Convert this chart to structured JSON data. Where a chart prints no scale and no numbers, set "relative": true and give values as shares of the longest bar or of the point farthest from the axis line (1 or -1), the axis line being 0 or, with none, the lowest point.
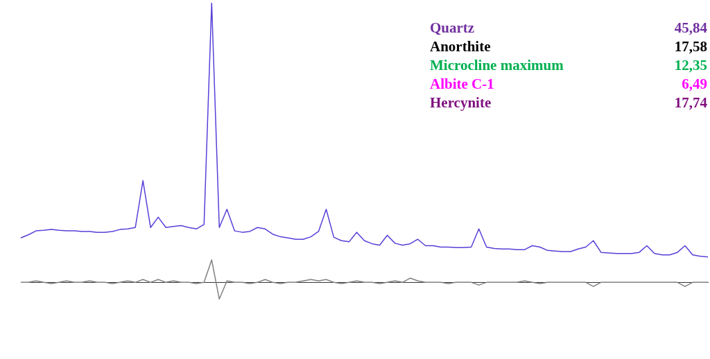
{
  "chart_data": {
    "type": "line",
    "relative": true,
    "categories": [
      null,
      null,
      null,
      null,
      null,
      null,
      null,
      null,
      null,
      null,
      null,
      null,
      null,
      null,
      null,
      null,
      null,
      null,
      null,
      null,
      null,
      null,
      null,
      null,
      null,
      null,
      null,
      null,
      null,
      null,
      null,
      null,
      null,
      null,
      null,
      null,
      null,
      null,
      null,
      null,
      null,
      null,
      null,
      null,
      null,
      null,
      null,
      null,
      null,
      null,
      null,
      null,
      null,
      null,
      null,
      null,
      null,
      null,
      null,
      null,
      null,
      null,
      null,
      null,
      null,
      null,
      null,
      null,
      null,
      null,
      null,
      null,
      null,
      null,
      null,
      null,
      null,
      null,
      null,
      null,
      null,
      null,
      null,
      null,
      null,
      null,
      null,
      null,
      null,
      null,
      null
    ],
    "series": [
      {
        "color": "#5540d8",
        "values": [
          0.159,
          0.17,
          0.184,
          0.186,
          0.189,
          0.186,
          0.184,
          0.184,
          0.182,
          0.182,
          0.179,
          0.179,
          0.182,
          0.189,
          0.191,
          0.196,
          0.364,
          0.196,
          0.233,
          0.196,
          0.2,
          0.203,
          0.196,
          0.191,
          0.207,
          1,
          0.196,
          0.261,
          0.184,
          0.179,
          0.182,
          0.196,
          0.191,
          0.172,
          0.163,
          0.159,
          0.154,
          0.154,
          0.163,
          0.182,
          0.261,
          0.161,
          0.149,
          0.145,
          0.179,
          0.149,
          0.138,
          0.133,
          0.168,
          0.14,
          0.133,
          0.138,
          0.154,
          0.131,
          0.131,
          0.126,
          0.126,
          0.124,
          0.124,
          0.126,
          0.191,
          0.126,
          0.121,
          0.119,
          0.119,
          0.117,
          0.117,
          0.131,
          0.126,
          0.114,
          0.112,
          0.11,
          0.11,
          0.119,
          0.126,
          0.149,
          0.107,
          0.105,
          0.103,
          0.103,
          0.103,
          0.107,
          0.131,
          0.103,
          0.098,
          0.098,
          0.107,
          0.131,
          0.098,
          0.093,
          0.091
        ]
      },
      {
        "color": "#808080",
        "values": [
          0,
          0,
          0.005,
          0,
          -0.005,
          0,
          0.005,
          0,
          0,
          0.005,
          0,
          0,
          -0.005,
          0,
          0.005,
          0,
          0.01,
          0,
          0.01,
          0,
          0.005,
          0,
          0,
          -0.005,
          0,
          0.08,
          -0.06,
          0.005,
          0,
          0,
          -0.005,
          0,
          0.01,
          0,
          -0.005,
          0,
          0,
          0.005,
          0.01,
          0.005,
          0.01,
          0,
          -0.005,
          0,
          0.005,
          0,
          0,
          -0.005,
          0,
          0.005,
          0,
          0.015,
          0.005,
          0,
          0,
          0,
          -0.005,
          0,
          0,
          0,
          -0.01,
          0,
          0,
          0,
          0,
          0,
          0.005,
          0,
          -0.005,
          0,
          0,
          0,
          0,
          0,
          0,
          -0.015,
          0,
          0,
          0,
          0,
          0,
          0,
          0,
          0,
          0,
          0,
          0,
          -0.015,
          0,
          0,
          0
        ]
      }
    ],
    "annotations": [
      "Quartz",
      "45,84",
      "Anorthite",
      "17,58",
      "Microcline maximum",
      "12,35",
      "Albite C-1",
      "6,49",
      "Hercynite",
      "17,74"
    ]
  }
}
